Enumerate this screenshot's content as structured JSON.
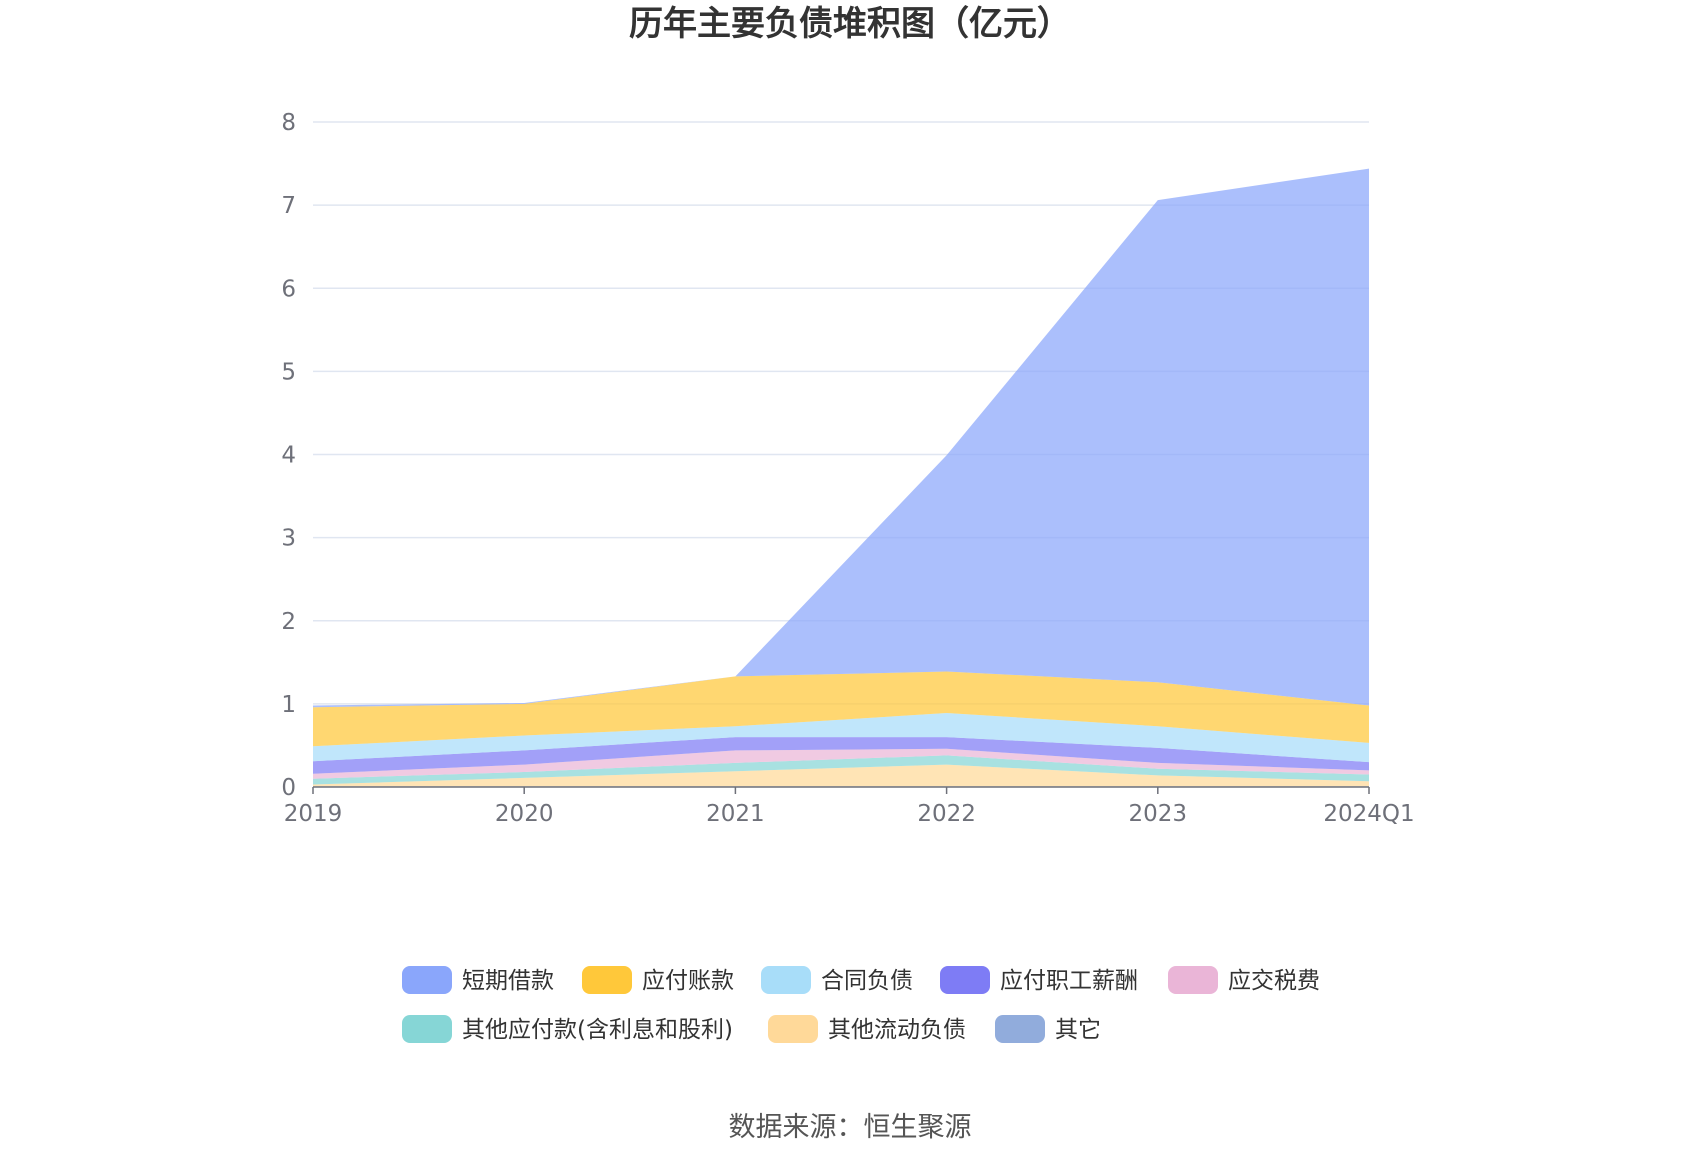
{
  "chart_data": {
    "type": "area",
    "stacked": true,
    "title": "历年主要负债堆积图（亿元）",
    "source": "数据来源：恒生聚源",
    "categories": [
      "2019",
      "2020",
      "2021",
      "2022",
      "2023",
      "2024Q1"
    ],
    "ylim": [
      0,
      8
    ],
    "yticks": [
      "0",
      "1",
      "2",
      "3",
      "4",
      "5",
      "6",
      "7",
      "8"
    ],
    "grid": true,
    "legend_position": "bottom",
    "series": [
      {
        "name": "其它",
        "color": "#91acdc",
        "values": [
          0.01,
          0.01,
          0.01,
          0.01,
          0.01,
          0.01
        ]
      },
      {
        "name": "其他流动负债",
        "color": "#ffd999",
        "values": [
          0.02,
          0.1,
          0.18,
          0.26,
          0.13,
          0.06
        ]
      },
      {
        "name": "其他应付款(含利息和股利)",
        "color": "#86d6d6",
        "values": [
          0.07,
          0.07,
          0.1,
          0.11,
          0.08,
          0.08
        ]
      },
      {
        "name": "应交税费",
        "color": "#eab5d7",
        "values": [
          0.06,
          0.09,
          0.15,
          0.08,
          0.07,
          0.05
        ]
      },
      {
        "name": "应付职工薪酬",
        "color": "#7e7cf5",
        "values": [
          0.15,
          0.17,
          0.16,
          0.14,
          0.18,
          0.1
        ]
      },
      {
        "name": "合同负债",
        "color": "#a8ddf9",
        "values": [
          0.18,
          0.18,
          0.13,
          0.29,
          0.26,
          0.23
        ]
      },
      {
        "name": "应付账款",
        "color": "#ffc83a",
        "values": [
          0.47,
          0.38,
          0.6,
          0.5,
          0.53,
          0.45
        ]
      },
      {
        "name": "短期借款",
        "color": "#8aa6fb",
        "values": [
          0.02,
          0.01,
          0.0,
          2.6,
          5.8,
          6.46
        ]
      }
    ],
    "legend_order": [
      "短期借款",
      "应付账款",
      "合同负债",
      "应付职工薪酬",
      "应交税费",
      "其他应付款(含利息和股利)",
      "其他流动负债",
      "其它"
    ]
  }
}
